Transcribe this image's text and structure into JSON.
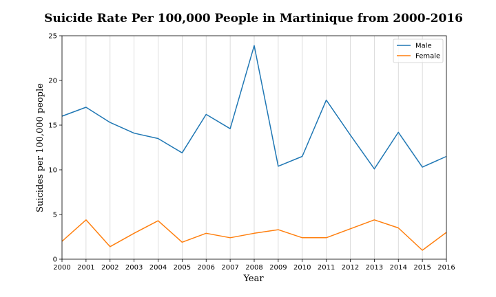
{
  "chart_data": {
    "type": "line",
    "title": "Suicide Rate Per 100,000 People in Martinique from 2000-2016",
    "xlabel": "Year",
    "ylabel": "Suicides per 100,000 people",
    "x": [
      2000,
      2001,
      2002,
      2003,
      2004,
      2005,
      2006,
      2007,
      2008,
      2009,
      2010,
      2011,
      2012,
      2013,
      2014,
      2015,
      2016
    ],
    "xlim": [
      2000,
      2016
    ],
    "ylim": [
      0,
      25
    ],
    "yticks": [
      0,
      5,
      10,
      15,
      20,
      25
    ],
    "grid": "vertical",
    "legend_position": "top-right",
    "series": [
      {
        "name": "Male",
        "color": "#1f77b4",
        "values": [
          16.0,
          17.0,
          15.3,
          14.1,
          13.5,
          11.9,
          16.2,
          14.6,
          23.9,
          10.4,
          11.5,
          17.8,
          13.9,
          10.1,
          14.2,
          10.3,
          11.5
        ]
      },
      {
        "name": "Female",
        "color": "#ff7f0e",
        "values": [
          2.0,
          4.4,
          1.4,
          2.9,
          4.3,
          1.9,
          2.9,
          2.4,
          2.9,
          3.3,
          2.4,
          2.4,
          3.4,
          4.4,
          3.5,
          1.0,
          3.0
        ]
      }
    ]
  }
}
